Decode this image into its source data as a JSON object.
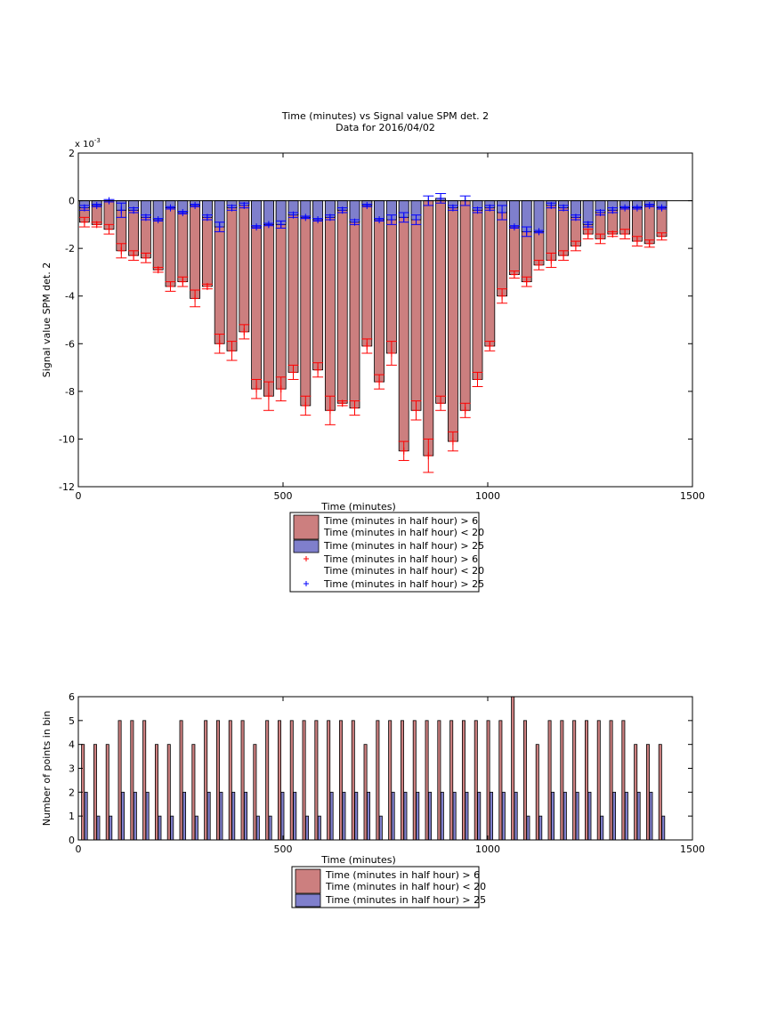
{
  "chart_data": [
    {
      "type": "bar",
      "title": "Time (minutes) vs Signal value SPM det. 2",
      "subtitle": "Data for 2016/04/02",
      "xlabel": "Time (minutes)",
      "ylabel": "Signal value SPM det. 2",
      "y_exponent_label": "x 10",
      "y_exponent_power": "-3",
      "xlim": [
        0,
        1500
      ],
      "ylim": [
        -12,
        2
      ],
      "x_ticks": [
        "0",
        "500",
        "1000",
        "1500"
      ],
      "y_ticks": [
        "2",
        "0",
        "-2",
        "-4",
        "-6",
        "-8",
        "-10",
        "-12"
      ],
      "grid": false,
      "legend_placement": "bottom-center",
      "colors": {
        "red": "#cc7f7f",
        "blue": "#7f7fcc",
        "red_marker": "#ff0000",
        "blue_marker": "#0000ff"
      },
      "legend": [
        {
          "kind": "bar",
          "color": "red",
          "lines": [
            "Time (minutes in half hour) > 6",
            "Time (minutes in half hour) < 20"
          ]
        },
        {
          "kind": "bar",
          "color": "blue",
          "lines": [
            "Time (minutes in half hour) > 25"
          ]
        },
        {
          "kind": "marker",
          "color": "red_marker",
          "lines": [
            "Time (minutes in half hour) > 6",
            "Time (minutes in half hour) < 20"
          ]
        },
        {
          "kind": "marker",
          "color": "blue_marker",
          "lines": [
            "Time (minutes in half hour) > 25"
          ]
        }
      ],
      "x": [
        15,
        45,
        75,
        105,
        135,
        165,
        195,
        225,
        255,
        285,
        315,
        345,
        375,
        405,
        435,
        465,
        495,
        525,
        555,
        585,
        615,
        645,
        675,
        705,
        735,
        765,
        795,
        825,
        855,
        885,
        915,
        945,
        975,
        1005,
        1035,
        1065,
        1095,
        1125,
        1155,
        1185,
        1215,
        1245,
        1275,
        1305,
        1335,
        1365,
        1395,
        1425
      ],
      "series": [
        {
          "color": "red",
          "values": [
            -0.9,
            -1.0,
            -1.2,
            -2.1,
            -2.3,
            -2.4,
            -2.9,
            -3.6,
            -3.4,
            -4.1,
            -3.6,
            -6.0,
            -6.3,
            -5.5,
            -7.9,
            -8.2,
            -7.9,
            -7.2,
            -8.6,
            -7.1,
            -8.8,
            -8.5,
            -8.7,
            -6.1,
            -7.6,
            -6.4,
            -10.5,
            -8.8,
            -10.7,
            -8.5,
            -10.1,
            -8.8,
            -7.5,
            -6.1,
            -4.0,
            -3.1,
            -3.4,
            -2.7,
            -2.5,
            -2.3,
            -1.9,
            -1.4,
            -1.6,
            -1.4,
            -1.4,
            -1.7,
            -1.8,
            -1.5
          ],
          "errors": [
            0.2,
            0.1,
            0.2,
            0.3,
            0.2,
            0.2,
            0.1,
            0.2,
            0.2,
            0.35,
            0.1,
            0.4,
            0.4,
            0.3,
            0.4,
            0.6,
            0.5,
            0.3,
            0.4,
            0.3,
            0.6,
            0.1,
            0.3,
            0.3,
            0.3,
            0.5,
            0.4,
            0.4,
            0.7,
            0.3,
            0.4,
            0.3,
            0.3,
            0.2,
            0.3,
            0.15,
            0.2,
            0.2,
            0.3,
            0.2,
            0.2,
            0.2,
            0.2,
            0.1,
            0.2,
            0.2,
            0.15,
            0.15
          ]
        },
        {
          "color": "blue",
          "values": [
            -0.3,
            -0.2,
            0.0,
            -0.4,
            -0.4,
            -0.7,
            -0.8,
            -0.3,
            -0.5,
            -0.2,
            -0.7,
            -1.1,
            -0.3,
            -0.2,
            -1.1,
            -1.0,
            -1.0,
            -0.6,
            -0.7,
            -0.8,
            -0.7,
            -0.4,
            -0.9,
            -0.2,
            -0.8,
            -0.8,
            -0.7,
            -0.8,
            0.0,
            0.1,
            -0.3,
            0.0,
            -0.4,
            -0.3,
            -0.5,
            -1.1,
            -1.3,
            -1.3,
            -0.2,
            -0.3,
            -0.7,
            -1.0,
            -0.5,
            -0.4,
            -0.3,
            -0.3,
            -0.2,
            -0.3
          ],
          "errors": [
            0.1,
            0.05,
            0.05,
            0.3,
            0.1,
            0.1,
            0.05,
            0.05,
            0.05,
            0.05,
            0.1,
            0.2,
            0.1,
            0.1,
            0.05,
            0.05,
            0.15,
            0.1,
            0.05,
            0.05,
            0.1,
            0.1,
            0.1,
            0.05,
            0.05,
            0.2,
            0.2,
            0.2,
            0.2,
            0.2,
            0.1,
            0.2,
            0.1,
            0.1,
            0.3,
            0.05,
            0.2,
            0.05,
            0.1,
            0.1,
            0.1,
            0.1,
            0.1,
            0.1,
            0.05,
            0.05,
            0.05,
            0.05
          ]
        }
      ]
    },
    {
      "type": "bar",
      "xlabel": "Time (minutes)",
      "ylabel": "Number of points in bin",
      "xlim": [
        0,
        1500
      ],
      "ylim": [
        0,
        6
      ],
      "x_ticks": [
        "0",
        "500",
        "1000",
        "1500"
      ],
      "y_ticks": [
        "0",
        "1",
        "2",
        "3",
        "4",
        "5",
        "6"
      ],
      "grid": false,
      "legend_placement": "bottom-center",
      "legend": [
        {
          "kind": "bar",
          "color": "red",
          "lines": [
            "Time (minutes in half hour) > 6",
            "Time (minutes in half hour) < 20"
          ]
        },
        {
          "kind": "bar",
          "color": "blue",
          "lines": [
            "Time (minutes in half hour) > 25"
          ]
        }
      ],
      "x": [
        15,
        45,
        75,
        105,
        135,
        165,
        195,
        225,
        255,
        285,
        315,
        345,
        375,
        405,
        435,
        465,
        495,
        525,
        555,
        585,
        615,
        645,
        675,
        705,
        735,
        765,
        795,
        825,
        855,
        885,
        915,
        945,
        975,
        1005,
        1035,
        1065,
        1095,
        1125,
        1155,
        1185,
        1215,
        1245,
        1275,
        1305,
        1335,
        1365,
        1395,
        1425
      ],
      "series": [
        {
          "color": "red",
          "values": [
            4,
            4,
            4,
            5,
            5,
            5,
            4,
            4,
            5,
            4,
            5,
            5,
            5,
            5,
            4,
            5,
            5,
            5,
            5,
            5,
            5,
            5,
            5,
            4,
            5,
            5,
            5,
            5,
            5,
            5,
            5,
            5,
            5,
            5,
            5,
            6,
            5,
            4,
            5,
            5,
            5,
            5,
            5,
            5,
            5,
            4,
            4,
            4
          ]
        },
        {
          "color": "blue",
          "values": [
            2,
            1,
            1,
            2,
            2,
            2,
            1,
            1,
            2,
            1,
            2,
            2,
            2,
            2,
            1,
            1,
            2,
            2,
            1,
            1,
            2,
            2,
            2,
            2,
            1,
            2,
            2,
            2,
            2,
            2,
            2,
            2,
            2,
            2,
            2,
            2,
            1,
            1,
            2,
            2,
            2,
            2,
            1,
            2,
            2,
            2,
            2,
            1
          ]
        }
      ]
    }
  ]
}
